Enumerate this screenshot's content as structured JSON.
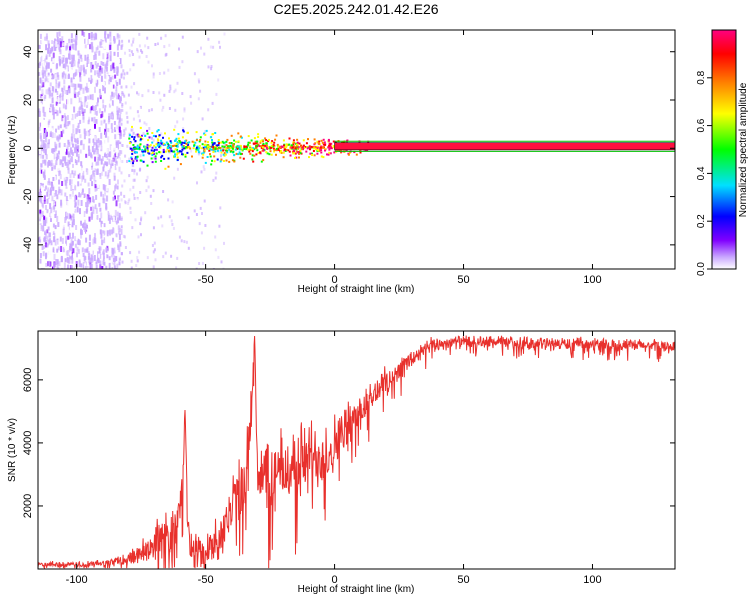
{
  "title": "C2E5.2025.242.01.42.E26",
  "chart_data": [
    {
      "type": "heatmap",
      "name": "spectrogram",
      "xlabel": "Height of straight line (km)",
      "ylabel": "Frequency (Hz)",
      "xlim": [
        -115,
        132
      ],
      "ylim": [
        -50,
        49
      ],
      "xticks": [
        -100,
        -50,
        0,
        50,
        100
      ],
      "xtick_labels": [
        "-100",
        "-50",
        "0",
        "50",
        "100"
      ],
      "yticks": [
        -40,
        -20,
        0,
        20,
        40
      ],
      "ytick_labels": [
        "-40",
        "-20",
        "0",
        "20",
        "40"
      ],
      "carrier_band": {
        "x_start": 0,
        "x_end": 132,
        "freq_center": 0.8,
        "freq_halfwidth": 1.5
      },
      "noise_region_x": [
        -115,
        -83
      ],
      "transition_region_x": [
        -83,
        0
      ],
      "colorbar": {
        "label": "Normalized spectral amplitude",
        "range": [
          0,
          1
        ],
        "ticks": [
          0.0,
          0.2,
          0.4,
          0.6,
          0.8
        ],
        "tick_labels": [
          "0.0",
          "0.2",
          "0.4",
          "0.6",
          "0.8"
        ],
        "colors": [
          "#ffffff",
          "#c9a8ff",
          "#8000ff",
          "#0000ff",
          "#00e0ff",
          "#00ff00",
          "#ffff00",
          "#ff8000",
          "#ff0000",
          "#ff0080"
        ]
      }
    },
    {
      "type": "line",
      "name": "snr",
      "xlabel": "Height of straight line (km)",
      "ylabel": "SNR (10 * v/v)",
      "xlim": [
        -115,
        132
      ],
      "ylim": [
        0,
        7550
      ],
      "xticks": [
        -100,
        -50,
        0,
        50,
        100
      ],
      "xtick_labels": [
        "-100",
        "-50",
        "0",
        "50",
        "100"
      ],
      "yticks": [
        2000,
        4000,
        6000
      ],
      "ytick_labels": [
        "2000",
        "4000",
        "6000"
      ],
      "color": "#e8302c",
      "series": [
        {
          "name": "SNR",
          "x": [
            -115,
            -105,
            -95,
            -85,
            -78,
            -72,
            -66,
            -62,
            -59,
            -58,
            -57,
            -56,
            -54,
            -50,
            -46,
            -42,
            -38,
            -34,
            -32,
            -31,
            -30,
            -28,
            -25,
            -22,
            -18,
            -14,
            -10,
            -6,
            -2,
            2,
            6,
            10,
            14,
            18,
            22,
            26,
            30,
            34,
            38,
            45,
            60,
            80,
            100,
            120,
            132
          ],
          "y": [
            150,
            130,
            140,
            220,
            380,
            700,
            1000,
            1200,
            2200,
            5200,
            2000,
            900,
            600,
            450,
            900,
            1500,
            2100,
            2900,
            5500,
            7500,
            3400,
            2900,
            2800,
            3000,
            3200,
            3400,
            3500,
            3600,
            3750,
            4200,
            4600,
            5000,
            5400,
            5800,
            6100,
            6400,
            6650,
            6900,
            7100,
            7200,
            7200,
            7150,
            7120,
            7080,
            7050
          ],
          "noise_amplitude": [
            120,
            110,
            120,
            200,
            350,
            600,
            900,
            1000,
            900,
            300,
            800,
            800,
            700,
            700,
            900,
            1200,
            1500,
            1700,
            1000,
            200,
            1600,
            1600,
            1600,
            1600,
            1500,
            1500,
            1500,
            1400,
            1300,
            1000,
            900,
            800,
            700,
            600,
            500,
            450,
            400,
            350,
            300,
            250,
            250,
            250,
            250,
            250,
            250
          ]
        }
      ]
    }
  ]
}
